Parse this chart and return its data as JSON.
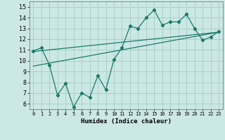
{
  "xlabel": "Humidex (Indice chaleur)",
  "xlim": [
    -0.5,
    23.5
  ],
  "ylim": [
    5.5,
    15.5
  ],
  "xticks": [
    0,
    1,
    2,
    3,
    4,
    5,
    6,
    7,
    8,
    9,
    10,
    11,
    12,
    13,
    14,
    15,
    16,
    17,
    18,
    19,
    20,
    21,
    22,
    23
  ],
  "yticks": [
    6,
    7,
    8,
    9,
    10,
    11,
    12,
    13,
    14,
    15
  ],
  "bg_color": "#cce8e4",
  "grid_color": "#a8d0cc",
  "line_color": "#1a7a6a",
  "main_x": [
    0,
    1,
    2,
    3,
    4,
    5,
    6,
    7,
    8,
    9,
    10,
    11,
    12,
    13,
    14,
    15,
    16,
    17,
    18,
    19,
    20,
    21,
    22,
    23
  ],
  "main_y": [
    10.9,
    11.2,
    9.6,
    6.8,
    7.9,
    5.7,
    7.0,
    6.6,
    8.6,
    7.3,
    10.1,
    11.2,
    13.2,
    13.0,
    14.0,
    14.7,
    13.3,
    13.6,
    13.6,
    14.3,
    13.0,
    11.9,
    12.2,
    12.7
  ],
  "trend1_x": [
    0,
    23
  ],
  "trend1_y": [
    10.85,
    12.65
  ],
  "trend2_x": [
    0,
    23
  ],
  "trend2_y": [
    9.5,
    12.65
  ]
}
